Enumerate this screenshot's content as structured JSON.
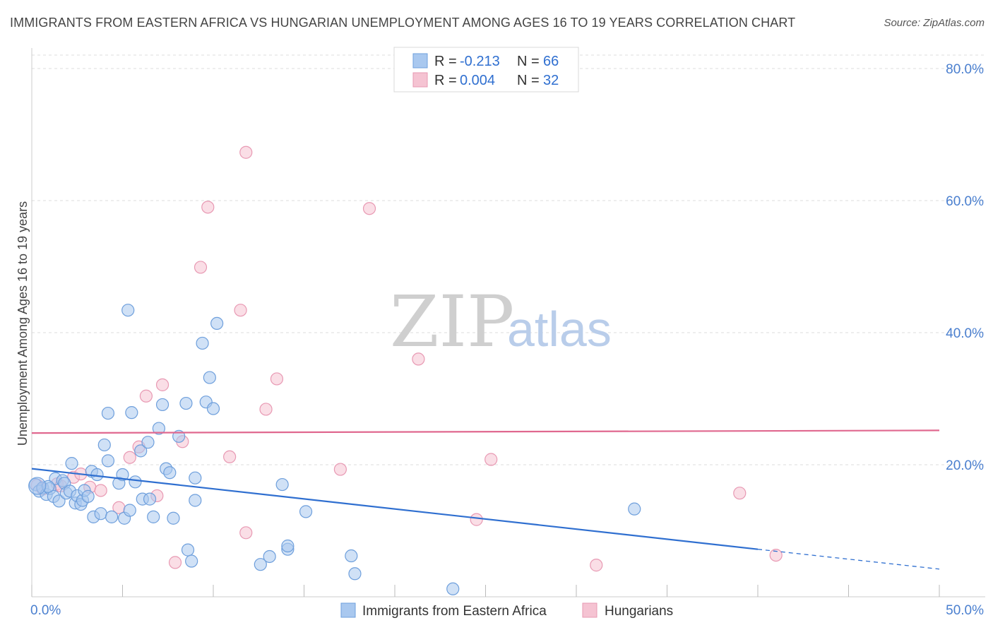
{
  "title": "IMMIGRANTS FROM EASTERN AFRICA VS HUNGARIAN UNEMPLOYMENT AMONG AGES 16 TO 19 YEARS CORRELATION CHART",
  "source": "Source: ZipAtlas.com",
  "watermark": {
    "zip": "ZIP",
    "atlas": "atlas"
  },
  "colors": {
    "blue_fill": "#a9c8ef",
    "blue_stroke": "#6e9fdc",
    "blue_line": "#2f6fd0",
    "pink_fill": "#f5c3d2",
    "pink_stroke": "#e899b3",
    "pink_line": "#e0688f",
    "grid": "#dcdcdc",
    "axis_label": "#4a7fcf"
  },
  "legend": {
    "rows": [
      {
        "r_label": "R =",
        "r_value": "-0.213",
        "n_label": "N =",
        "n_value": "66"
      },
      {
        "r_label": "R =",
        "r_value": "0.004",
        "n_label": "N =",
        "n_value": "32"
      }
    ]
  },
  "chart_data": {
    "type": "scatter",
    "xlabel": "",
    "ylabel": "Unemployment Among Ages 16 to 19 years",
    "xlim": [
      0,
      50
    ],
    "ylim": [
      0,
      80
    ],
    "x_tick_labels": [
      "0.0%",
      "50.0%"
    ],
    "y_ticks": [
      20,
      40,
      60,
      80
    ],
    "y_tick_labels": [
      "20.0%",
      "40.0%",
      "60.0%",
      "80.0%"
    ],
    "grid": true,
    "series": [
      {
        "name": "Immigrants from Eastern Africa",
        "color": "blue",
        "r": -0.213,
        "n": 66,
        "trend": {
          "x0": 0,
          "y0": 19.4,
          "x1": 40,
          "y1": 7.2,
          "dashed_to_x": 50,
          "dashed_to_y": 4.2
        },
        "points": [
          [
            0.2,
            17.0
          ],
          [
            0.4,
            16.0
          ],
          [
            0.6,
            16.5
          ],
          [
            0.8,
            15.5
          ],
          [
            1.0,
            16.4
          ],
          [
            1.2,
            15.2
          ],
          [
            1.3,
            17.9
          ],
          [
            1.5,
            14.5
          ],
          [
            1.7,
            17.6
          ],
          [
            1.8,
            17.2
          ],
          [
            1.9,
            15.7
          ],
          [
            2.1,
            16.0
          ],
          [
            2.2,
            20.2
          ],
          [
            2.4,
            14.2
          ],
          [
            2.5,
            15.3
          ],
          [
            2.7,
            14.0
          ],
          [
            2.8,
            14.6
          ],
          [
            2.9,
            16.1
          ],
          [
            3.1,
            15.2
          ],
          [
            3.3,
            19.0
          ],
          [
            3.4,
            12.1
          ],
          [
            3.6,
            18.5
          ],
          [
            3.8,
            12.6
          ],
          [
            4.0,
            23.0
          ],
          [
            4.2,
            20.6
          ],
          [
            4.4,
            12.1
          ],
          [
            4.8,
            17.2
          ],
          [
            5.0,
            18.5
          ],
          [
            5.1,
            11.9
          ],
          [
            5.4,
            13.1
          ],
          [
            5.7,
            17.4
          ],
          [
            6.0,
            22.1
          ],
          [
            6.1,
            14.8
          ],
          [
            6.4,
            23.4
          ],
          [
            6.5,
            14.8
          ],
          [
            6.7,
            12.1
          ],
          [
            7.0,
            25.5
          ],
          [
            7.2,
            29.1
          ],
          [
            7.4,
            19.4
          ],
          [
            7.6,
            18.8
          ],
          [
            7.8,
            11.9
          ],
          [
            8.1,
            24.3
          ],
          [
            8.5,
            29.3
          ],
          [
            8.6,
            7.1
          ],
          [
            8.8,
            5.4
          ],
          [
            9.0,
            18.0
          ],
          [
            9.0,
            14.6
          ],
          [
            9.4,
            38.4
          ],
          [
            9.6,
            29.5
          ],
          [
            9.8,
            33.2
          ],
          [
            10.0,
            28.5
          ],
          [
            10.2,
            41.4
          ],
          [
            5.3,
            43.4
          ],
          [
            4.2,
            27.8
          ],
          [
            5.5,
            27.9
          ],
          [
            12.6,
            4.9
          ],
          [
            13.1,
            6.1
          ],
          [
            14.1,
            7.2
          ],
          [
            14.1,
            7.7
          ],
          [
            13.8,
            17.0
          ],
          [
            15.1,
            12.9
          ],
          [
            17.6,
            6.2
          ],
          [
            17.8,
            3.5
          ],
          [
            23.2,
            1.2
          ],
          [
            33.2,
            13.3
          ],
          [
            0.9,
            16.7
          ]
        ]
      },
      {
        "name": "Hungarians",
        "color": "pink",
        "r": 0.004,
        "n": 32,
        "trend": {
          "x0": 0,
          "y0": 24.8,
          "x1": 50,
          "y1": 25.2
        },
        "points": [
          [
            0.3,
            16.9
          ],
          [
            0.6,
            16.3
          ],
          [
            1.4,
            17.1
          ],
          [
            1.6,
            16.8
          ],
          [
            2.3,
            18.1
          ],
          [
            2.7,
            18.6
          ],
          [
            3.2,
            16.6
          ],
          [
            3.8,
            16.1
          ],
          [
            4.8,
            13.5
          ],
          [
            5.4,
            21.1
          ],
          [
            5.9,
            22.7
          ],
          [
            6.3,
            30.4
          ],
          [
            6.9,
            15.3
          ],
          [
            7.2,
            32.1
          ],
          [
            7.9,
            5.2
          ],
          [
            8.3,
            23.5
          ],
          [
            9.3,
            49.9
          ],
          [
            9.7,
            59.0
          ],
          [
            10.9,
            21.2
          ],
          [
            11.5,
            43.4
          ],
          [
            11.8,
            9.7
          ],
          [
            11.8,
            67.3
          ],
          [
            12.9,
            28.4
          ],
          [
            13.5,
            33.0
          ],
          [
            17.0,
            19.3
          ],
          [
            18.6,
            58.8
          ],
          [
            21.3,
            36.0
          ],
          [
            24.5,
            11.7
          ],
          [
            25.3,
            20.8
          ],
          [
            31.1,
            4.8
          ],
          [
            39.0,
            15.7
          ],
          [
            41.0,
            6.3
          ]
        ]
      }
    ]
  },
  "bottom_legend": {
    "items": [
      {
        "label": "Immigrants from Eastern Africa"
      },
      {
        "label": "Hungarians"
      }
    ]
  }
}
